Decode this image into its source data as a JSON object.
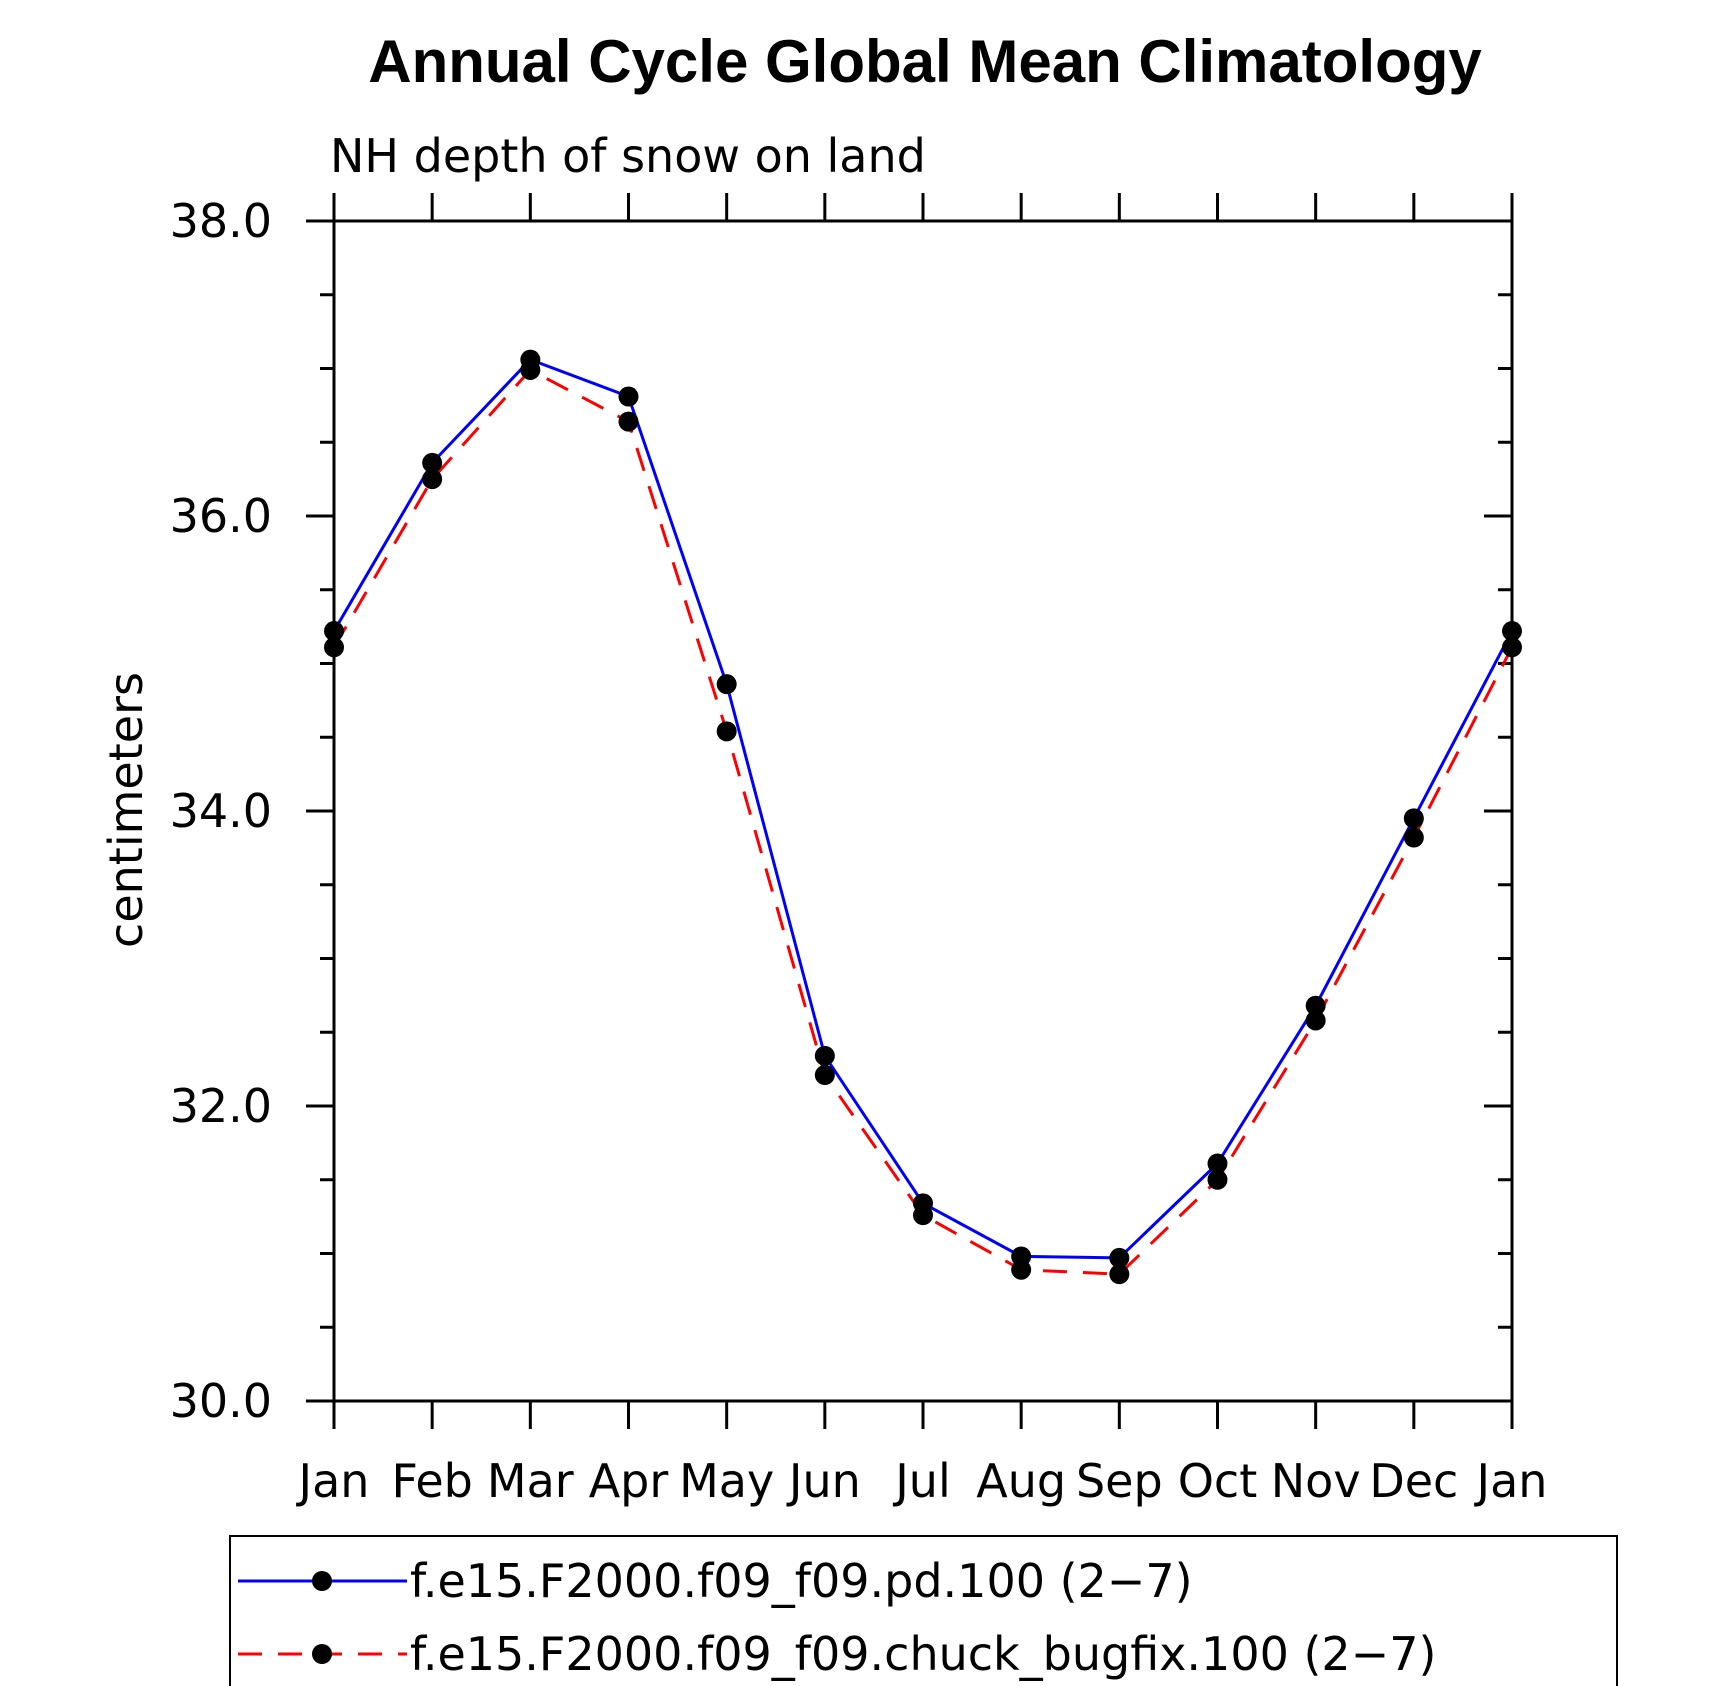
{
  "chart_data": {
    "type": "line",
    "title": "Annual Cycle Global Mean Climatology",
    "subtitle": "NH depth of snow on land",
    "ylabel": "centimeters",
    "xlabel": "",
    "ylim": [
      30.0,
      38.0
    ],
    "yticks": [
      "30.0",
      "32.0",
      "34.0",
      "36.0",
      "38.0"
    ],
    "categories": [
      "Jan",
      "Feb",
      "Mar",
      "Apr",
      "May",
      "Jun",
      "Jul",
      "Aug",
      "Sep",
      "Oct",
      "Nov",
      "Dec",
      "Jan"
    ],
    "series": [
      {
        "name": "f.e15.F2000.f09_f09.pd.100 (2−7)",
        "color": "#0000ff",
        "dash": "solid",
        "marker": "filled-circle",
        "values": [
          35.22,
          36.36,
          37.06,
          36.81,
          34.86,
          32.34,
          31.34,
          30.98,
          30.97,
          31.61,
          32.68,
          33.95,
          35.22
        ]
      },
      {
        "name": "f.e15.F2000.f09_f09.chuck_bugfix.100 (2−7)",
        "color": "#ff0000",
        "dash": "dashed",
        "marker": "filled-circle",
        "values": [
          35.11,
          36.25,
          36.99,
          36.64,
          34.54,
          32.21,
          31.26,
          30.89,
          30.86,
          31.5,
          32.58,
          33.82,
          35.11
        ]
      }
    ]
  }
}
